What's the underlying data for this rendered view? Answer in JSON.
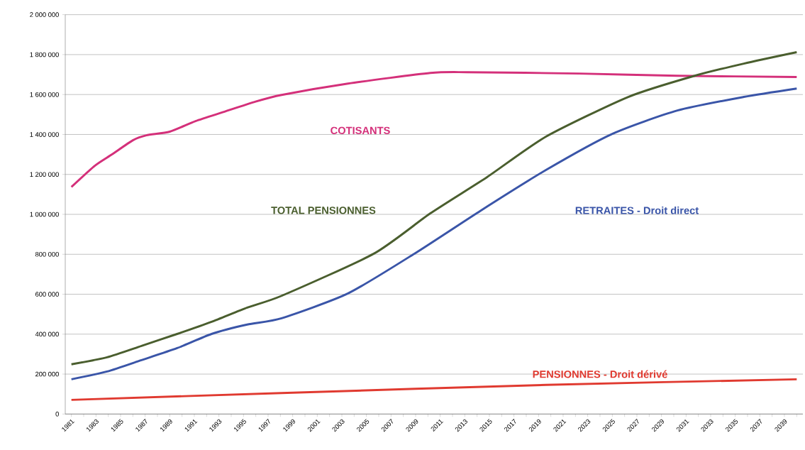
{
  "chart_data": {
    "type": "line",
    "xlim": [
      1980.5,
      2040.5
    ],
    "ylim": [
      0,
      2000000
    ],
    "xticks": [
      {
        "value": 1981,
        "label": "1981"
      },
      {
        "value": 1982,
        "label": null
      },
      {
        "value": 1983,
        "label": "1983"
      },
      {
        "value": 1984,
        "label": null
      },
      {
        "value": 1985,
        "label": "1985"
      },
      {
        "value": 1986,
        "label": null
      },
      {
        "value": 1987,
        "label": "1987"
      },
      {
        "value": 1988,
        "label": null
      },
      {
        "value": 1989,
        "label": "1989"
      },
      {
        "value": 1990,
        "label": null
      },
      {
        "value": 1991,
        "label": "1991"
      },
      {
        "value": 1992,
        "label": null
      },
      {
        "value": 1993,
        "label": "1993"
      },
      {
        "value": 1994,
        "label": null
      },
      {
        "value": 1995,
        "label": "1995"
      },
      {
        "value": 1996,
        "label": null
      },
      {
        "value": 1997,
        "label": "1997"
      },
      {
        "value": 1998,
        "label": null
      },
      {
        "value": 1999,
        "label": "1999"
      },
      {
        "value": 2000,
        "label": null
      },
      {
        "value": 2001,
        "label": "2001"
      },
      {
        "value": 2002,
        "label": null
      },
      {
        "value": 2003,
        "label": "2003"
      },
      {
        "value": 2004,
        "label": null
      },
      {
        "value": 2005,
        "label": "2005"
      },
      {
        "value": 2006,
        "label": null
      },
      {
        "value": 2007,
        "label": "2007"
      },
      {
        "value": 2008,
        "label": null
      },
      {
        "value": 2009,
        "label": "2009"
      },
      {
        "value": 2010,
        "label": null
      },
      {
        "value": 2011,
        "label": "2011"
      },
      {
        "value": 2012,
        "label": null
      },
      {
        "value": 2013,
        "label": "2013"
      },
      {
        "value": 2014,
        "label": null
      },
      {
        "value": 2015,
        "label": "2015"
      },
      {
        "value": 2016,
        "label": null
      },
      {
        "value": 2017,
        "label": "2017"
      },
      {
        "value": 2018,
        "label": null
      },
      {
        "value": 2019,
        "label": "2019"
      },
      {
        "value": 2020,
        "label": null
      },
      {
        "value": 2021,
        "label": "2021"
      },
      {
        "value": 2022,
        "label": null
      },
      {
        "value": 2023,
        "label": "2023"
      },
      {
        "value": 2024,
        "label": null
      },
      {
        "value": 2025,
        "label": "2025"
      },
      {
        "value": 2026,
        "label": null
      },
      {
        "value": 2027,
        "label": "2027"
      },
      {
        "value": 2028,
        "label": null
      },
      {
        "value": 2029,
        "label": "2029"
      },
      {
        "value": 2030,
        "label": null
      },
      {
        "value": 2031,
        "label": "2031"
      },
      {
        "value": 2032,
        "label": null
      },
      {
        "value": 2033,
        "label": "2033"
      },
      {
        "value": 2034,
        "label": null
      },
      {
        "value": 2035,
        "label": "2035"
      },
      {
        "value": 2036,
        "label": null
      },
      {
        "value": 2037,
        "label": "2037"
      },
      {
        "value": 2038,
        "label": null
      },
      {
        "value": 2039,
        "label": "2039"
      },
      {
        "value": 2040,
        "label": null
      }
    ],
    "yticks": [
      {
        "value": 0,
        "label": "0"
      },
      {
        "value": 200000,
        "label": "200 000"
      },
      {
        "value": 400000,
        "label": "400 000"
      },
      {
        "value": 600000,
        "label": "600 000"
      },
      {
        "value": 800000,
        "label": "800 000"
      },
      {
        "value": 1000000,
        "label": "1 000 000"
      },
      {
        "value": 1200000,
        "label": "1 200 000"
      },
      {
        "value": 1400000,
        "label": "1 400 000"
      },
      {
        "value": 1600000,
        "label": "1 600 000"
      },
      {
        "value": 1800000,
        "label": "1 800 000"
      },
      {
        "value": 2000000,
        "label": "2 000 000"
      }
    ],
    "grid": "y",
    "marker": "none",
    "line_style": "solid",
    "series": [
      {
        "name": "COTISANTS",
        "color": "#d4307a",
        "x": [
          1981,
          1982.9,
          1984.3,
          1986,
          1987.1,
          1989,
          1991.1,
          1993.4,
          1995.9,
          1998.1,
          2003.5,
          2010.2,
          2013.2,
          2022.3,
          2030.3,
          2040
        ],
        "values": [
          1137000,
          1243000,
          1300000,
          1371000,
          1396000,
          1414000,
          1467000,
          1513000,
          1563000,
          1598000,
          1655000,
          1708000,
          1712000,
          1705000,
          1694000,
          1688000
        ]
      },
      {
        "name": "TOTAL PENSIONNES",
        "color": "#4a5e2e",
        "x": [
          1981,
          1983.9,
          1986.7,
          1989.6,
          1992.4,
          1995.3,
          1998.1,
          2005.6,
          2010.2,
          2014.8,
          2019.6,
          2026.3,
          2031.7,
          2035.7,
          2040
        ],
        "values": [
          249000,
          284000,
          341000,
          401000,
          462000,
          533000,
          592000,
          803000,
          1005000,
          1186000,
          1389000,
          1588000,
          1694000,
          1755000,
          1812000
        ]
      },
      {
        "name": "RETRAITES - Droit direct",
        "color": "#3a55a8",
        "x": [
          1981,
          1983.9,
          1986.7,
          1989.6,
          1992.4,
          1995.3,
          1998.1,
          2003.5,
          2008.9,
          2014.3,
          2019.6,
          2025,
          2030.3,
          2035.7,
          2040
        ],
        "values": [
          174000,
          213000,
          270000,
          330000,
          401000,
          448000,
          480000,
          604000,
          803000,
          1019000,
          1222000,
          1403000,
          1520000,
          1588000,
          1630000
        ]
      },
      {
        "name": "PENSIONNES - Droit dérivé",
        "color": "#e03a30",
        "x": [
          1981,
          1998.1,
          2019.6,
          2040
        ],
        "values": [
          71000,
          105000,
          146000,
          174000
        ]
      }
    ]
  }
}
